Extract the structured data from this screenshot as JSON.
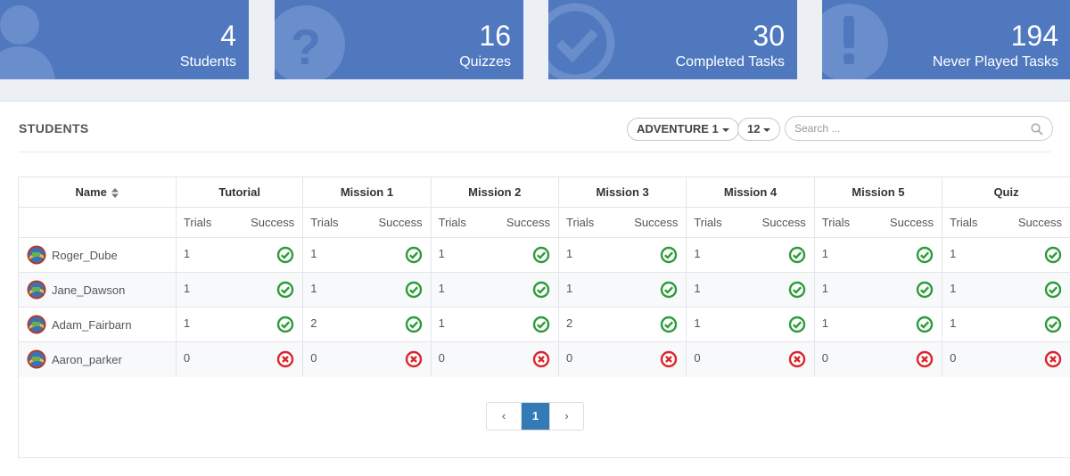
{
  "stats": [
    {
      "value": "4",
      "label": "Students",
      "icon": "user-icon"
    },
    {
      "value": "16",
      "label": "Quizzes",
      "icon": "question-icon"
    },
    {
      "value": "30",
      "label": "Completed Tasks",
      "icon": "check-circle-icon"
    },
    {
      "value": "194",
      "label": "Never Played Tasks",
      "icon": "exclamation-icon"
    }
  ],
  "panel": {
    "title": "STUDENTS",
    "adventure_select": "ADVENTURE 1",
    "page_size_select": "12",
    "search_placeholder": "Search ..."
  },
  "table": {
    "name_header": "Name",
    "groups": [
      "Tutorial",
      "Mission 1",
      "Mission 2",
      "Mission 3",
      "Mission 4",
      "Mission 5",
      "Quiz"
    ],
    "sub_trials": "Trials",
    "sub_success": "Success",
    "rows": [
      {
        "name": "Roger_Dube",
        "trials": [
          "1",
          "1",
          "1",
          "1",
          "1",
          "1",
          "1"
        ],
        "success": [
          true,
          true,
          true,
          true,
          true,
          true,
          true
        ]
      },
      {
        "name": "Jane_Dawson",
        "trials": [
          "1",
          "1",
          "1",
          "1",
          "1",
          "1",
          "1"
        ],
        "success": [
          true,
          true,
          true,
          true,
          true,
          true,
          true
        ]
      },
      {
        "name": "Adam_Fairbarn",
        "trials": [
          "1",
          "2",
          "1",
          "2",
          "1",
          "1",
          "1"
        ],
        "success": [
          true,
          true,
          true,
          true,
          true,
          true,
          true
        ]
      },
      {
        "name": "Aaron_parker",
        "trials": [
          "0",
          "0",
          "0",
          "0",
          "0",
          "0",
          "0"
        ],
        "success": [
          false,
          false,
          false,
          false,
          false,
          false,
          false
        ]
      }
    ]
  },
  "pagination": {
    "prev": "‹",
    "current": "1",
    "next": "›"
  },
  "colors": {
    "tile": "#5078bf",
    "success": "#2e9b3a",
    "fail": "#d9262c",
    "active_page": "#337ab7"
  }
}
